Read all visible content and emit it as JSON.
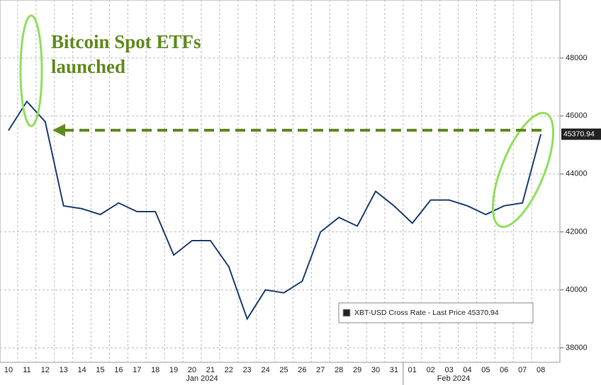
{
  "chart_data": {
    "type": "line",
    "annotation": [
      "Bitcoin Spot ETFs",
      "launched"
    ],
    "categories": [
      "10",
      "11",
      "12",
      "13",
      "14",
      "15",
      "16",
      "17",
      "18",
      "19",
      "20",
      "21",
      "22",
      "23",
      "24",
      "25",
      "26",
      "27",
      "28",
      "29",
      "30",
      "31",
      "01",
      "02",
      "03",
      "04",
      "05",
      "06",
      "07",
      "08"
    ],
    "month_labels": [
      "Jan 2024",
      "Feb 2024"
    ],
    "series": [
      {
        "name": "XBT-USD Cross Rate - Last Price 45370.94",
        "color": "#1f3f73",
        "values": [
          45500,
          46500,
          45800,
          42900,
          42800,
          42600,
          43000,
          42700,
          42700,
          41200,
          41700,
          41700,
          40800,
          39000,
          40000,
          39900,
          40300,
          42000,
          42500,
          42200,
          43400,
          42900,
          42300,
          43100,
          43100,
          42900,
          42600,
          42900,
          43000,
          45370.94
        ]
      }
    ],
    "ylim": [
      37500,
      50000
    ],
    "yticks": [
      38000,
      40000,
      42000,
      44000,
      46000,
      48000
    ],
    "grid": true
  }
}
